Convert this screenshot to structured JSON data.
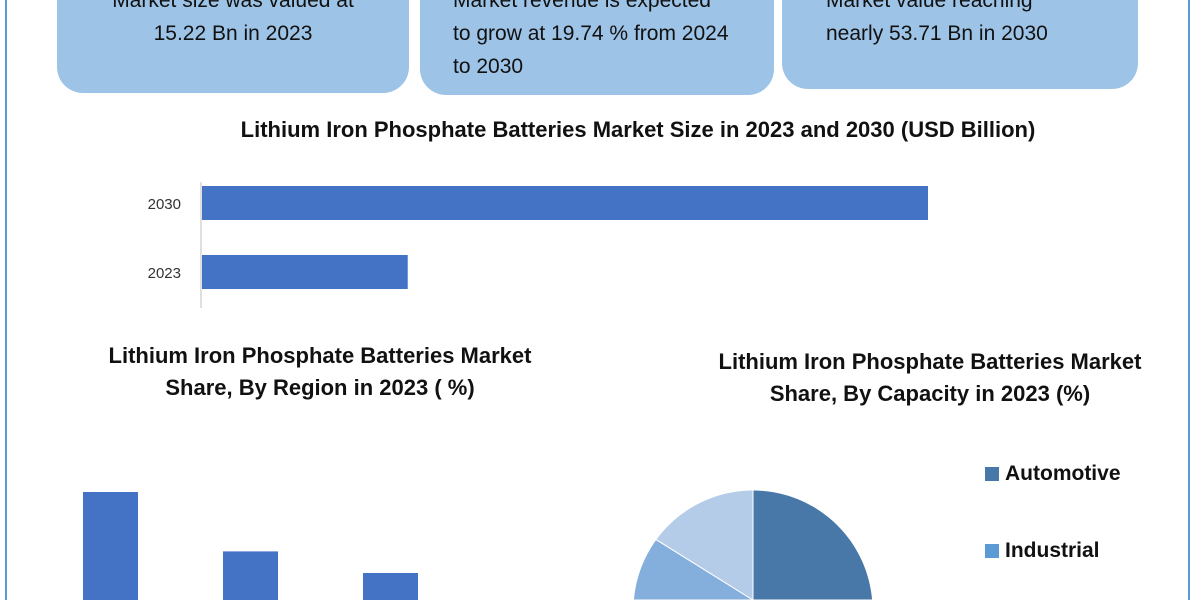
{
  "cards": [
    {
      "lines": [
        "Market size was valued at",
        "15.22 Bn in 2023"
      ]
    },
    {
      "lines": [
        "Market revenue is expected",
        "to grow at 19.74 % from 2024",
        "to 2030"
      ]
    },
    {
      "lines": [
        "Market value reaching",
        "nearly 53.71 Bn in 2030"
      ]
    }
  ],
  "chart_data": [
    {
      "type": "bar",
      "orientation": "horizontal",
      "title": "Lithium Iron Phosphate Batteries Market Size in 2023 and 2030 (USD Billion)",
      "categories": [
        "2030",
        "2023"
      ],
      "values": [
        53.71,
        15.22
      ],
      "color": "#4472c4",
      "grid": false
    },
    {
      "type": "bar",
      "title": "Lithium Iron Phosphate Batteries Market Share, By Region in 2023 ( %)",
      "values": [
        40,
        18,
        10
      ],
      "color": "#4472c4",
      "grid": false
    },
    {
      "type": "pie",
      "title": "Lithium Iron Phosphate Batteries Market Share, By Capacity in 2023 (%)",
      "slices": [
        {
          "name": "Automotive",
          "value": 50,
          "color": "#4878a8"
        },
        {
          "name": "Industrial",
          "value": 20,
          "color": "#5b9bd5"
        },
        {
          "value": 15,
          "color": "#84afdc"
        },
        {
          "value": 15,
          "color": "#b4cce8"
        }
      ],
      "legend": "right"
    }
  ]
}
